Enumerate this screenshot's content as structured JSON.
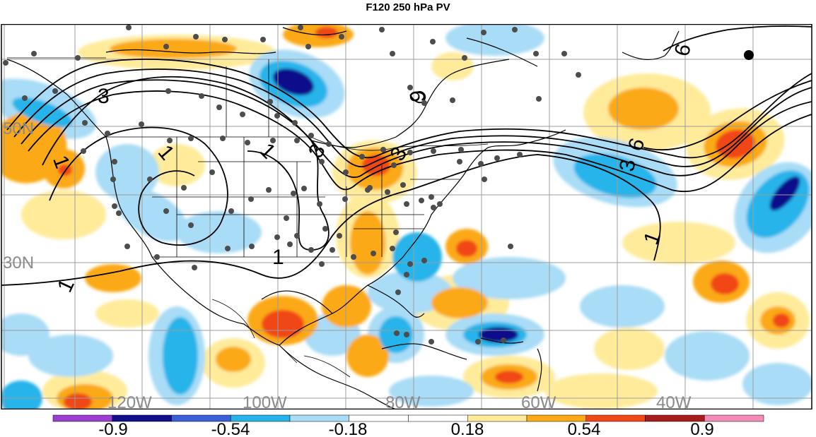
{
  "title": "F120 250 hPa PV",
  "longitude_labels": [
    "120W",
    "100W",
    "80W",
    "60W",
    "40W"
  ],
  "latitude_labels": [
    "50N",
    "30N"
  ],
  "contour_labels": [
    "1",
    "3",
    "6"
  ],
  "colorbar": {
    "tick_labels": [
      "-0.9",
      "-0.54",
      "-0.18",
      "0.18",
      "0.54",
      "0.9"
    ],
    "colors": [
      "#9a3fd1",
      "#0f0f8c",
      "#3a5fd6",
      "#27b4ea",
      "#a9dcf6",
      "#ffffff",
      "#ffffff",
      "#ffeb9a",
      "#fba914",
      "#f14714",
      "#a81c1c",
      "#f48cb8"
    ]
  },
  "fill_colors": {
    "pos_light": "#ffeb9a",
    "pos_mid": "#fba914",
    "pos_strong": "#f14714",
    "neg_light": "#a9dcf6",
    "neg_mid": "#27b4ea",
    "neg_strong": "#3a5fd6",
    "neg_deep": "#0f0f8c"
  }
}
